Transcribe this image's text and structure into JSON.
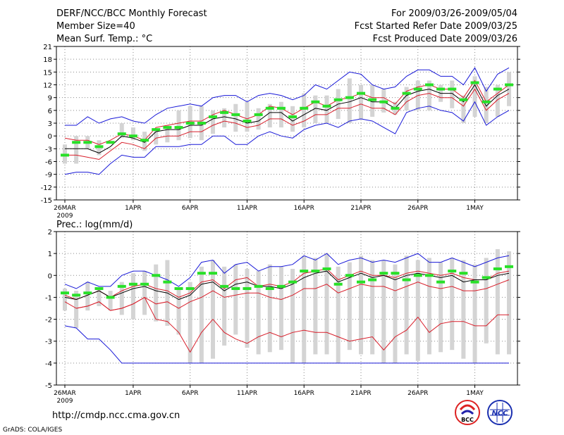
{
  "header": {
    "title": "DERF/NCC/BCC Monthly Forecast",
    "member_size": "Member Size=40",
    "variable": "Mean Surf. Temp.: °C",
    "period": "For 2009/03/26-2009/05/04",
    "fcst_started": "Fcst Started Refer Date 2009/03/25",
    "fcst_produced": "Fcst Produced Date 2009/03/26"
  },
  "footer": {
    "url": "http://cmdp.ncc.cma.gov.cn",
    "grads_credit": "GrADS: COLA/IGES",
    "logo_bcc_text": "BCC",
    "logo_ncc_text": "NCC"
  },
  "colors": {
    "gridline": "#8a8a8a",
    "box": "#d4d4d4",
    "mean_line": "#000000",
    "spread_line": "#d81e2a",
    "envelope_line": "#1818d8",
    "observed": "#28e028"
  },
  "chart_data": [
    {
      "type": "line",
      "title": "Mean Surf. Temp.: °C",
      "xlabel": "",
      "ylabel": "",
      "ylim": [
        -15,
        21
      ],
      "yticks": [
        "21",
        "18",
        "15",
        "12",
        "9",
        "6",
        "3",
        "0",
        "-3",
        "-6",
        "-9",
        "-12",
        "-15"
      ],
      "xticks": [
        {
          "day": 1,
          "label": "26MAR",
          "sub": "2009"
        },
        {
          "day": 7,
          "label": "1APR"
        },
        {
          "day": 12,
          "label": "6APR"
        },
        {
          "day": 17,
          "label": "11APR"
        },
        {
          "day": 22,
          "label": "16APR"
        },
        {
          "day": 27,
          "label": "21APR"
        },
        {
          "day": 32,
          "label": "26APR"
        },
        {
          "day": 37,
          "label": "1MAY"
        }
      ],
      "days": [
        1,
        2,
        3,
        4,
        5,
        6,
        7,
        8,
        9,
        10,
        11,
        12,
        13,
        14,
        15,
        16,
        17,
        18,
        19,
        20,
        21,
        22,
        23,
        24,
        25,
        26,
        27,
        28,
        29,
        30,
        31,
        32,
        33,
        34,
        35,
        36,
        37,
        38,
        39,
        40
      ],
      "series": [
        {
          "name": "max",
          "color_key": "envelope_line",
          "values": [
            2.5,
            2.5,
            4.5,
            3,
            4,
            4.5,
            3.5,
            3,
            5,
            6.5,
            7,
            7.5,
            7,
            9,
            9.5,
            9.5,
            8,
            9.5,
            10,
            9.5,
            8.5,
            9.5,
            12,
            11,
            13,
            15,
            14.5,
            12,
            11,
            11.5,
            14,
            15.5,
            15.5,
            14,
            14,
            12,
            16,
            10.5,
            14.5,
            16
          ]
        },
        {
          "name": "upper",
          "color_key": "spread_line",
          "values": [
            -0.5,
            -1,
            -1,
            -2,
            -1,
            0.5,
            0,
            -1,
            2,
            2.5,
            3,
            3.5,
            3.5,
            5,
            6,
            5,
            4,
            5,
            7,
            6.5,
            5,
            6.5,
            8,
            7,
            8.5,
            9,
            10,
            9,
            9,
            7.5,
            10.5,
            11.5,
            12,
            11,
            11,
            9,
            13,
            8,
            10,
            12
          ]
        },
        {
          "name": "mean",
          "color_key": "mean_line",
          "values": [
            -3,
            -3,
            -3,
            -4,
            -2.5,
            0,
            -0.5,
            -1.5,
            1,
            1.5,
            1.5,
            2.5,
            2.5,
            4,
            4.5,
            4,
            3,
            3.5,
            5.5,
            5.5,
            3.5,
            5,
            6.5,
            6,
            7.5,
            8,
            9,
            8,
            8,
            6.5,
            9.5,
            10.5,
            11,
            10,
            10,
            8,
            12,
            7,
            9.5,
            11
          ]
        },
        {
          "name": "lower",
          "color_key": "spread_line",
          "values": [
            -4.5,
            -4.5,
            -5,
            -5.5,
            -3.5,
            -1.5,
            -2,
            -3,
            -0.5,
            0,
            0,
            1,
            1,
            2.5,
            3.5,
            3,
            2,
            2.5,
            4,
            4,
            2.5,
            3.5,
            5,
            5,
            6.5,
            6.5,
            7.5,
            6.5,
            6.5,
            5,
            8,
            9.5,
            10,
            9,
            9,
            7,
            11,
            6,
            8.5,
            10
          ]
        },
        {
          "name": "min",
          "color_key": "envelope_line",
          "values": [
            -9,
            -8.5,
            -8.5,
            -9,
            -6.5,
            -4.5,
            -5,
            -5,
            -2.5,
            -2.5,
            -2.5,
            -2,
            -2,
            0,
            0,
            -2,
            -2,
            0,
            1,
            0,
            -0.5,
            1.5,
            2.5,
            3,
            2,
            3.5,
            4,
            3.5,
            2,
            0.5,
            5.5,
            6.5,
            7,
            6,
            5.5,
            3.5,
            8,
            2.5,
            4.5,
            6
          ]
        }
      ],
      "boxes": {
        "low": [
          -6.5,
          -6.5,
          -3,
          -4.5,
          -3,
          -0.5,
          -1,
          -3.5,
          -2,
          -1.5,
          -1,
          -0.5,
          -1,
          0.5,
          2,
          1,
          1,
          1.5,
          2,
          2,
          1,
          2,
          3,
          3,
          4,
          3,
          4,
          4.5,
          5.5,
          5,
          6,
          6,
          6,
          8,
          6.5,
          3,
          4.5,
          3,
          4.5,
          7
        ],
        "high": [
          -2,
          0,
          0,
          -1,
          -3,
          3,
          2,
          1,
          1.5,
          2.5,
          6,
          7,
          7,
          6,
          6.5,
          7.5,
          8,
          6.5,
          7.5,
          8,
          7,
          10,
          9.5,
          9.5,
          11,
          13.5,
          12,
          12,
          11,
          8,
          11.5,
          13,
          13,
          12,
          13,
          9.5,
          14,
          11.5,
          12,
          15
        ]
      },
      "observed": [
        -4.5,
        -1.5,
        -1.5,
        -2.5,
        -1.5,
        0.5,
        0,
        -1,
        1.5,
        2,
        2,
        3,
        3,
        4.5,
        5.5,
        5,
        3.5,
        5,
        6.5,
        6.5,
        4.5,
        6.5,
        8,
        7,
        8.5,
        9,
        10,
        8.5,
        8,
        6.5,
        10,
        11,
        12,
        11,
        11,
        8.5,
        12.5,
        8,
        11,
        12
      ]
    },
    {
      "type": "line",
      "title": "Prec.: log(mm/d)",
      "xlabel": "",
      "ylabel": "",
      "ylim": [
        -5,
        2
      ],
      "yticks": [
        "2",
        "1",
        "0",
        "-1",
        "-2",
        "-3",
        "-4",
        "-5"
      ],
      "xticks": [
        {
          "day": 1,
          "label": "26MAR",
          "sub": "2009"
        },
        {
          "day": 7,
          "label": "1APR"
        },
        {
          "day": 12,
          "label": "6APR"
        },
        {
          "day": 17,
          "label": "11APR"
        },
        {
          "day": 22,
          "label": "16APR"
        },
        {
          "day": 27,
          "label": "21APR"
        },
        {
          "day": 32,
          "label": "26APR"
        },
        {
          "day": 37,
          "label": "1MAY"
        }
      ],
      "days": [
        1,
        2,
        3,
        4,
        5,
        6,
        7,
        8,
        9,
        10,
        11,
        12,
        13,
        14,
        15,
        16,
        17,
        18,
        19,
        20,
        21,
        22,
        23,
        24,
        25,
        26,
        27,
        28,
        29,
        30,
        31,
        32,
        33,
        34,
        35,
        36,
        37,
        38,
        39,
        40
      ],
      "series": [
        {
          "name": "max",
          "color_key": "envelope_line",
          "values": [
            -0.4,
            -0.6,
            -0.3,
            -0.5,
            -0.5,
            0,
            0.2,
            0.2,
            0,
            -0.2,
            -0.5,
            -0.1,
            0.6,
            0.7,
            0.1,
            0.5,
            0.6,
            0.2,
            0.4,
            0.4,
            0.5,
            0.9,
            0.7,
            1,
            0.5,
            0.7,
            0.8,
            0.6,
            0.7,
            0.6,
            0.8,
            1,
            0.6,
            0.6,
            0.8,
            0.6,
            0.4,
            0.6,
            0.8,
            0.9
          ]
        },
        {
          "name": "upper",
          "color_key": "spread_line",
          "values": [
            -0.9,
            -1.1,
            -0.9,
            -0.7,
            -1,
            -0.7,
            -0.5,
            -0.4,
            -0.6,
            -0.7,
            -1,
            -0.8,
            -0.3,
            -0.2,
            -0.6,
            -0.2,
            -0.1,
            -0.5,
            -0.4,
            -0.5,
            -0.3,
            0.1,
            0.2,
            0.3,
            -0.2,
            0,
            0.2,
            0,
            0,
            -0.1,
            0.1,
            0.2,
            0.1,
            0,
            0.1,
            -0.1,
            -0.2,
            -0.2,
            0.1,
            0.2
          ]
        },
        {
          "name": "mean",
          "color_key": "mean_line",
          "values": [
            -1,
            -1.1,
            -0.9,
            -0.7,
            -1,
            -0.8,
            -0.6,
            -0.5,
            -0.7,
            -0.8,
            -1.1,
            -0.9,
            -0.4,
            -0.3,
            -0.7,
            -0.4,
            -0.3,
            -0.5,
            -0.5,
            -0.6,
            -0.4,
            -0.1,
            0.1,
            0.2,
            -0.3,
            -0.1,
            0.1,
            -0.1,
            0,
            -0.2,
            0,
            0.1,
            0,
            -0.1,
            0,
            -0.3,
            -0.2,
            -0.2,
            0,
            0.1
          ]
        },
        {
          "name": "lower",
          "color_key": "spread_line",
          "values": [
            -1.2,
            -1.5,
            -1.4,
            -1.2,
            -1.6,
            -1.5,
            -1.3,
            -1,
            -1.3,
            -1.2,
            -1.5,
            -1.2,
            -1,
            -0.7,
            -1,
            -0.9,
            -0.8,
            -0.8,
            -1,
            -1.1,
            -0.9,
            -0.6,
            -0.6,
            -0.4,
            -0.8,
            -0.6,
            -0.4,
            -0.5,
            -0.5,
            -0.7,
            -0.5,
            -0.3,
            -0.5,
            -0.6,
            -0.5,
            -0.7,
            -0.7,
            -0.6,
            -0.4,
            -0.2
          ]
        },
        {
          "name": "min",
          "color_key": "envelope_line",
          "values": [
            -2.3,
            -2.4,
            -2.9,
            -2.9,
            -3.4,
            -4,
            -4,
            -4,
            -4,
            -4,
            -4,
            -4,
            -4,
            -4,
            -4,
            -4,
            -4,
            -4,
            -4,
            -4,
            -4,
            -4,
            -4,
            -4,
            -4,
            -4,
            -4,
            -4,
            -4,
            -4,
            -4,
            -4,
            -4,
            -4,
            -4,
            -4,
            -4,
            -4,
            -4,
            -4
          ]
        },
        {
          "name": "p10",
          "color_key": "spread_line",
          "values": [
            null,
            -1.5,
            -1.4,
            -1.2,
            -1.6,
            -1.5,
            -1.3,
            -1,
            -2,
            -2.1,
            -2.6,
            -3.5,
            -2.6,
            -2,
            -2.6,
            -2.9,
            -3.1,
            -2.8,
            -2.6,
            -2.8,
            -2.6,
            -2.5,
            -2.6,
            -2.6,
            -2.8,
            -3,
            -2.9,
            -2.8,
            -3.4,
            -2.8,
            -2.5,
            -1.9,
            -2.6,
            -2.2,
            -2.1,
            -2.1,
            -2.3,
            -2.3,
            -1.8,
            -1.8
          ]
        }
      ],
      "boxes": {
        "low": [
          -1.6,
          -2.4,
          -1.6,
          -1.4,
          -1.6,
          -1.8,
          -2,
          -1.8,
          -2.1,
          -2.3,
          -2.7,
          -4,
          -4,
          -3.8,
          -3.2,
          -2.7,
          -3.3,
          -3.6,
          -3.5,
          -3.4,
          -4,
          -4,
          -3.6,
          -3.6,
          -4,
          -3.4,
          -3.6,
          -3.6,
          -4,
          -4,
          -3.6,
          -3.9,
          -3.6,
          -3.5,
          -3.4,
          -3.8,
          -4,
          -3.1,
          -3.6,
          -3.6
        ],
        "high": [
          -0.6,
          -0.7,
          -0.3,
          -0.6,
          -0.7,
          -0.3,
          0.1,
          0.2,
          0.5,
          0.7,
          -0.6,
          -0.3,
          0.4,
          0.7,
          0.4,
          0.5,
          0.3,
          0.2,
          0.5,
          0.4,
          0.3,
          0.9,
          0.8,
          1,
          0.4,
          0.6,
          0.9,
          0.7,
          0.7,
          0.5,
          0.9,
          0.7,
          0.8,
          0.6,
          0.8,
          0.7,
          0.5,
          0.8,
          1.2,
          1.1
        ]
      },
      "observed": [
        -0.8,
        -0.9,
        -0.8,
        -0.6,
        -1,
        -0.5,
        -0.4,
        -0.4,
        0,
        -0.3,
        -0.6,
        -0.6,
        0.1,
        0.1,
        -0.5,
        -0.6,
        -0.6,
        -0.5,
        -0.6,
        -0.5,
        -0.3,
        0.2,
        0.2,
        0.3,
        -0.4,
        0,
        -0.3,
        -0.2,
        0.1,
        0.1,
        -0.2,
        0,
        0,
        -0.3,
        0.2,
        0.1,
        -0.3,
        -0.1,
        0.3,
        0.4
      ]
    }
  ]
}
